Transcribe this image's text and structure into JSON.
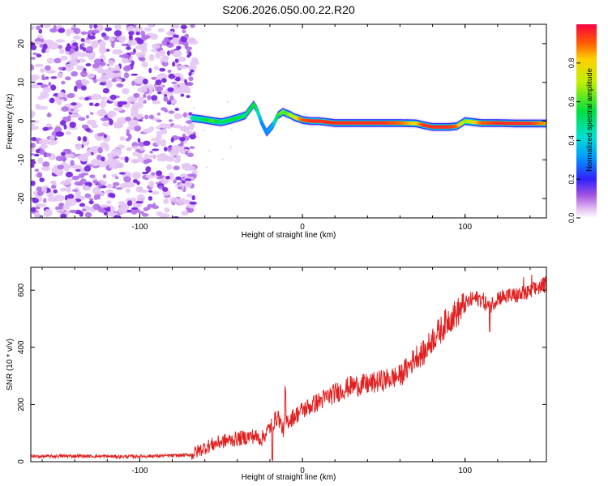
{
  "title": "S206.2026.050.00.22.R20",
  "chart_data": [
    {
      "type": "heatmap",
      "xlabel": "Height of straight line (km)",
      "ylabel": "Frequency (Hz)",
      "xlim": [
        -167,
        150
      ],
      "ylim": [
        -25,
        25
      ],
      "xticks": [
        -100,
        0,
        100
      ],
      "yticks": [
        -20,
        -10,
        0,
        10,
        20
      ],
      "noise_region_x": [
        -167,
        -68
      ],
      "ridge": {
        "x": [
          -68,
          -62,
          -55,
          -50,
          -45,
          -40,
          -35,
          -30,
          -28,
          -25,
          -22,
          -18,
          -15,
          -12,
          -10,
          -7,
          -5,
          -2,
          0,
          5,
          10,
          20,
          30,
          50,
          60,
          70,
          75,
          80,
          90,
          95,
          100,
          110,
          120,
          130,
          140,
          150
        ],
        "freq": [
          0.8,
          0.5,
          0.0,
          -0.3,
          0.2,
          0.8,
          1.5,
          4.3,
          3.0,
          -0.5,
          -3.0,
          -1.0,
          1.5,
          2.4,
          2.0,
          1.5,
          1.0,
          0.6,
          0.3,
          0.0,
          0.0,
          -0.5,
          -0.5,
          -0.5,
          -0.5,
          -0.6,
          -1.1,
          -1.5,
          -1.5,
          -1.3,
          0.0,
          -0.5,
          -0.5,
          -0.6,
          -0.6,
          -0.6
        ],
        "amplitude": [
          0.45,
          0.5,
          0.6,
          0.5,
          0.55,
          0.55,
          0.5,
          0.55,
          0.5,
          0.3,
          0.3,
          0.35,
          0.55,
          0.65,
          0.6,
          0.7,
          0.7,
          0.85,
          0.9,
          0.95,
          0.95,
          0.95,
          0.95,
          0.95,
          0.9,
          0.8,
          0.95,
          0.95,
          0.95,
          0.9,
          0.65,
          0.9,
          0.95,
          0.95,
          0.95,
          0.85
        ]
      },
      "colorbar": {
        "label": "Normalized spectral amplitude",
        "range": [
          0,
          1
        ],
        "ticks": [
          "0.0",
          "0.2",
          "0.4",
          "0.6",
          "0.8"
        ]
      }
    },
    {
      "type": "line",
      "xlabel": "Height of straight line (km)",
      "ylabel": "SNR (10 * v/v)",
      "xlim": [
        -167,
        150
      ],
      "ylim": [
        0,
        680
      ],
      "xticks": [
        -100,
        0,
        100
      ],
      "yticks": [
        0,
        200,
        400,
        600
      ],
      "series": [
        {
          "name": "SNR",
          "color": "#e02020",
          "x": [
            -167,
            -140,
            -110,
            -90,
            -75,
            -68,
            -60,
            -50,
            -40,
            -30,
            -25,
            -20,
            -15,
            -12,
            -10,
            -7,
            -5,
            0,
            10,
            20,
            30,
            40,
            50,
            60,
            65,
            70,
            75,
            80,
            85,
            90,
            95,
            100,
            105,
            110,
            115,
            120,
            130,
            140,
            145,
            150
          ],
          "y": [
            18,
            20,
            18,
            20,
            22,
            25,
            50,
            70,
            80,
            90,
            80,
            120,
            160,
            110,
            140,
            150,
            160,
            180,
            210,
            240,
            265,
            270,
            285,
            300,
            330,
            370,
            380,
            430,
            460,
            500,
            520,
            550,
            570,
            570,
            540,
            575,
            580,
            590,
            610,
            620
          ]
        }
      ]
    }
  ]
}
